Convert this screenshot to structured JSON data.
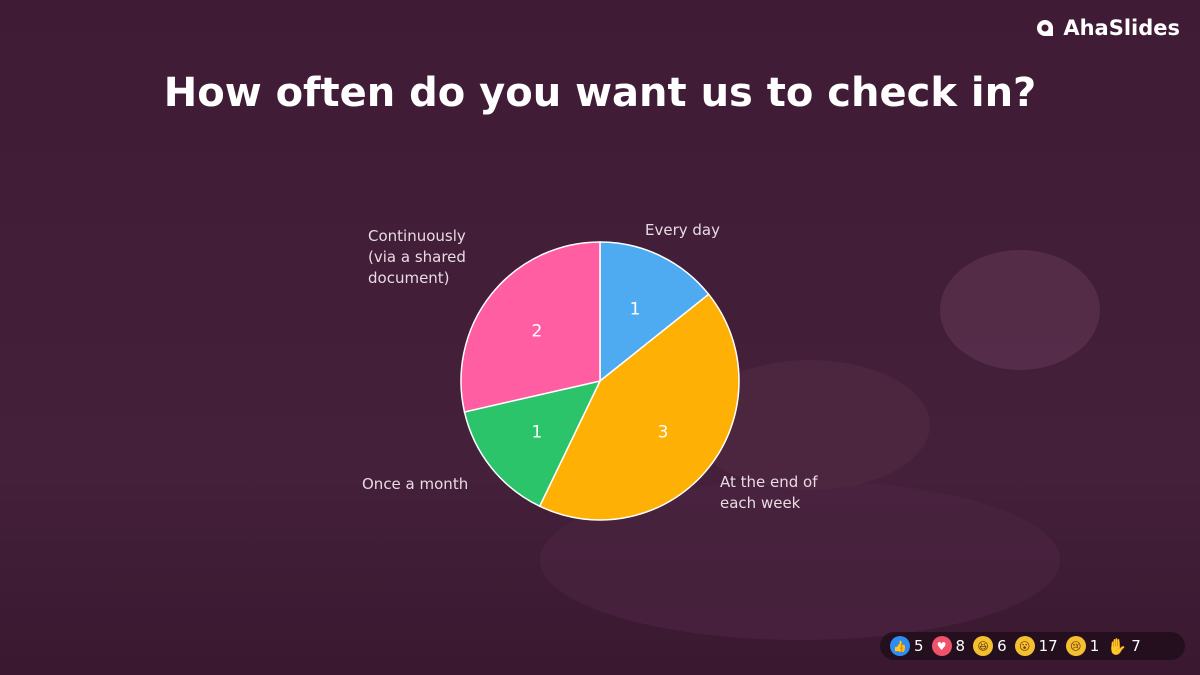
{
  "brand": "AhaSlides",
  "question": "How often do you want us to check in?",
  "chart_data": {
    "type": "pie",
    "slices": [
      {
        "label": "Every day",
        "value": 1,
        "color": "#4eabf2"
      },
      {
        "label": "At the end of each week",
        "value": 3,
        "color": "#ffb005"
      },
      {
        "label": "Once a month",
        "value": 1,
        "color": "#2bc46b"
      },
      {
        "label": "Continuously (via a shared document)",
        "value": 2,
        "color": "#ff5fa2"
      }
    ]
  },
  "labels": {
    "every_day": "Every day",
    "end_week_1": "At the end of",
    "end_week_2": "each week",
    "once_month": "Once a month",
    "cont_1": "Continuously",
    "cont_2": "(via a shared",
    "cont_3": "document)"
  },
  "reactions": [
    {
      "icon": "thumbs-up-icon",
      "count": "5",
      "color": "#2f8cf0"
    },
    {
      "icon": "heart-icon",
      "count": "8",
      "color": "#f0526a"
    },
    {
      "icon": "laugh-icon",
      "count": "6",
      "color": "#f5c030"
    },
    {
      "icon": "wow-icon",
      "count": "17",
      "color": "#f5c030"
    },
    {
      "icon": "sad-icon",
      "count": "1",
      "color": "#f5c030"
    },
    {
      "icon": "raised-hand-icon",
      "count": "7",
      "color": "transparent"
    }
  ]
}
